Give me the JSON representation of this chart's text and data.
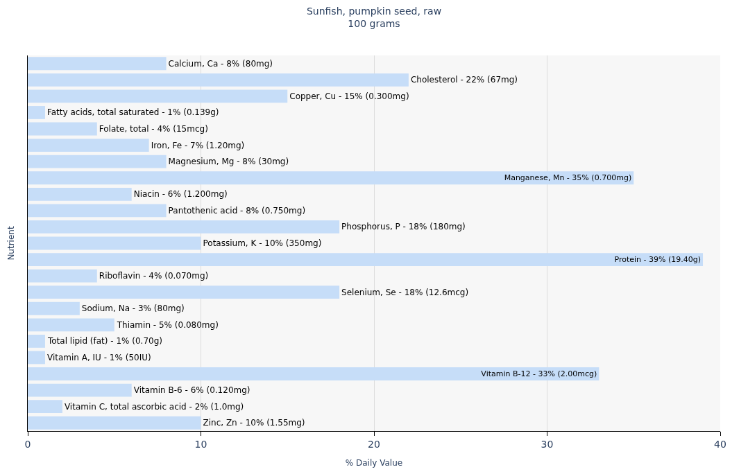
{
  "chart_data": {
    "type": "bar",
    "orientation": "horizontal",
    "title": "Sunfish, pumpkin seed, raw",
    "subtitle": "100 grams",
    "xlabel": "% Daily Value",
    "ylabel": "Nutrient",
    "categories": [
      "Calcium, Ca - 8% (80mg)",
      "Cholesterol - 22% (67mg)",
      "Copper, Cu - 15% (0.300mg)",
      "Fatty acids, total saturated - 1% (0.139g)",
      "Folate, total - 4% (15mcg)",
      "Iron, Fe - 7% (1.20mg)",
      "Magnesium, Mg - 8% (30mg)",
      "Manganese, Mn - 35% (0.700mg)",
      "Niacin - 6% (1.200mg)",
      "Pantothenic acid - 8% (0.750mg)",
      "Phosphorus, P - 18% (180mg)",
      "Potassium, K - 10% (350mg)",
      "Protein - 39% (19.40g)",
      "Riboflavin - 4% (0.070mg)",
      "Selenium, Se - 18% (12.6mcg)",
      "Sodium, Na - 3% (80mg)",
      "Thiamin - 5% (0.080mg)",
      "Total lipid (fat) - 1% (0.70g)",
      "Vitamin A, IU - 1% (50IU)",
      "Vitamin B-12 - 33% (2.00mcg)",
      "Vitamin B-6 - 6% (0.120mg)",
      "Vitamin C, total ascorbic acid - 2% (1.0mg)",
      "Zinc, Zn - 10% (1.55mg)"
    ],
    "values": [
      8,
      22,
      15,
      1,
      4,
      7,
      8,
      35,
      6,
      8,
      18,
      10,
      39,
      4,
      18,
      3,
      5,
      1,
      1,
      33,
      6,
      2,
      10
    ],
    "color": "#c6ddf8",
    "xlim": [
      0,
      40
    ],
    "xticks": [
      0,
      10,
      20,
      30,
      40
    ],
    "grid": "x",
    "tick_labels": "x"
  }
}
